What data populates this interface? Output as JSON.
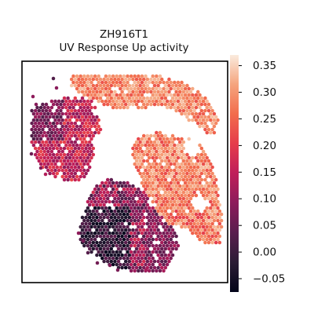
{
  "chart_data": {
    "type": "scatter",
    "title": "ZH916T1",
    "subtitle": "UV Response Up activity",
    "xlabel": "",
    "ylabel": "",
    "grid": false,
    "colormap": "rocket",
    "colorbar": {
      "range": [
        -0.075,
        0.37
      ],
      "ticks": [
        -0.05,
        0.0,
        0.05,
        0.1,
        0.15,
        0.2,
        0.25,
        0.3,
        0.35
      ],
      "tick_labels": [
        "−0.05",
        "0.00",
        "0.05",
        "0.10",
        "0.15",
        "0.20",
        "0.25",
        "0.30",
        "0.35"
      ]
    },
    "regions": [
      {
        "name": "upper band",
        "value_range": [
          0.17,
          0.34
        ]
      },
      {
        "name": "left lobe",
        "value_range": [
          0.02,
          0.22
        ]
      },
      {
        "name": "right lobe",
        "value_range": [
          0.15,
          0.34
        ]
      },
      {
        "name": "lower bulb",
        "value_range": [
          -0.07,
          0.18
        ]
      }
    ]
  }
}
